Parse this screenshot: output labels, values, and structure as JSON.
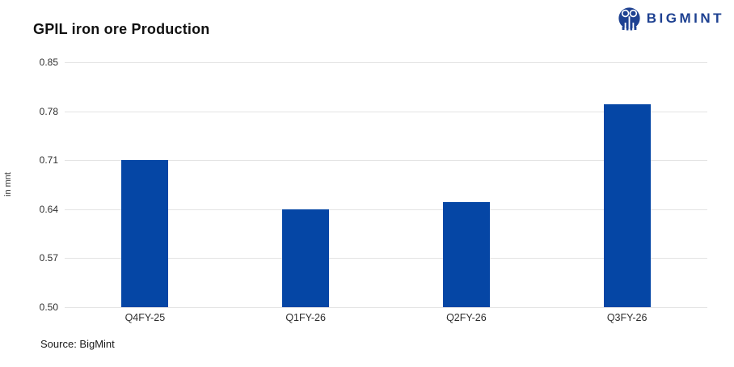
{
  "header": {
    "title": "GPIL iron ore Production"
  },
  "logo": {
    "text": "BIGMINT",
    "icon": "bigmint-people-icon",
    "color": "#1e4191"
  },
  "chart_data": {
    "type": "bar",
    "title": "GPIL iron ore Production",
    "categories": [
      "Q4FY-25",
      "Q1FY-26",
      "Q2FY-26",
      "Q3FY-26"
    ],
    "values": [
      0.71,
      0.64,
      0.65,
      0.79
    ],
    "xlabel": "",
    "ylabel": "in mnt",
    "ylim": [
      0.5,
      0.85
    ],
    "yticks": [
      0.85,
      0.78,
      0.71,
      0.64,
      0.57,
      0.5
    ],
    "grid": true,
    "legend": false,
    "bar_color": "#0546a5",
    "gridline_color": "#e4e4e4"
  },
  "footer": {
    "source_label": "Source: BigMint"
  }
}
